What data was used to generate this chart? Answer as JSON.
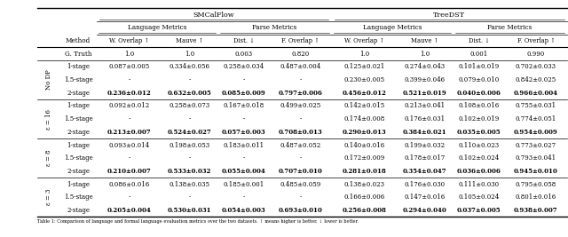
{
  "title_smcalflow": "SMCalFlow",
  "title_treedst": "TreeDST",
  "sub_lang": "Language Metrics",
  "sub_parse": "Parse Metrics",
  "col_headers": [
    "W. Overlap ↑",
    "Mauve ↑",
    "Dist. ↓",
    "F. Overlap ↑",
    "W. Overlap ↑",
    "Mauve ↑",
    "Dist. ↓",
    "F. Overlap ↑"
  ],
  "row_groups": [
    {
      "label": "No DP",
      "rows": [
        {
          "method": "1-stage",
          "bold": false,
          "vals": [
            "0.087±0.005",
            "0.334±0.056",
            "0.258±0.034",
            "0.487±0.004",
            "0.125±0.021",
            "0.274±0.043",
            "0.101±0.019",
            "0.702±0.033"
          ]
        },
        {
          "method": "1.5-stage",
          "bold": false,
          "vals": [
            "-",
            "-",
            "-",
            "-",
            "0.230±0.005",
            "0.399±0.046",
            "0.079±0.010",
            "0.842±0.025"
          ]
        },
        {
          "method": "2-stage",
          "bold": true,
          "vals": [
            "0.236±0.012",
            "0.632±0.005",
            "0.085±0.009",
            "0.797±0.006",
            "0.456±0.012",
            "0.521±0.019",
            "0.040±0.006",
            "0.966±0.004"
          ]
        }
      ]
    },
    {
      "label": "ε = 16",
      "rows": [
        {
          "method": "1-stage",
          "bold": false,
          "vals": [
            "0.092±0.012",
            "0.258±0.073",
            "0.167±0.018",
            "0.499±0.025",
            "0.142±0.015",
            "0.213±0.041",
            "0.108±0.016",
            "0.755±0.031"
          ]
        },
        {
          "method": "1.5-stage",
          "bold": false,
          "vals": [
            "-",
            "-",
            "-",
            "-",
            "0.174±0.008",
            "0.176±0.031",
            "0.102±0.019",
            "0.774±0.051"
          ]
        },
        {
          "method": "2-stage",
          "bold": true,
          "vals": [
            "0.213±0.007",
            "0.524±0.027",
            "0.057±0.003",
            "0.708±0.013",
            "0.290±0.013",
            "0.384±0.021",
            "0.035±0.005",
            "0.954±0.009"
          ]
        }
      ]
    },
    {
      "label": "ε = 8",
      "rows": [
        {
          "method": "1-stage",
          "bold": false,
          "vals": [
            "0.093±0.014",
            "0.198±0.053",
            "0.183±0.011",
            "0.487±0.052",
            "0.140±0.016",
            "0.199±0.032",
            "0.110±0.023",
            "0.773±0.027"
          ]
        },
        {
          "method": "1.5-stage",
          "bold": false,
          "vals": [
            "-",
            "-",
            "-",
            "-",
            "0.172±0.009",
            "0.178±0.017",
            "0.102±0.024",
            "0.793±0.041"
          ]
        },
        {
          "method": "2-stage",
          "bold": true,
          "vals": [
            "0.210±0.007",
            "0.533±0.032",
            "0.055±0.004",
            "0.707±0.010",
            "0.281±0.018",
            "0.354±0.047",
            "0.036±0.006",
            "0.945±0.010"
          ]
        }
      ]
    },
    {
      "label": "ε = 3",
      "rows": [
        {
          "method": "1-stage",
          "bold": false,
          "vals": [
            "0.086±0.016",
            "0.138±0.035",
            "0.185±0.001",
            "0.485±0.059",
            "0.138±0.023",
            "0.176±0.030",
            "0.111±0.030",
            "0.795±0.058"
          ]
        },
        {
          "method": "1.5-stage",
          "bold": false,
          "vals": [
            "-",
            "-",
            "-",
            "-",
            "0.166±0.006",
            "0.147±0.016",
            "0.105±0.024",
            "0.801±0.016"
          ]
        },
        {
          "method": "2-stage",
          "bold": true,
          "vals": [
            "0.205±0.004",
            "0.530±0.031",
            "0.054±0.003",
            "0.693±0.010",
            "0.256±0.008",
            "0.294±0.040",
            "0.037±0.005",
            "0.938±0.007"
          ]
        }
      ]
    }
  ],
  "ground_truth": [
    "1.0",
    "1.0",
    "0.003",
    "0.820",
    "1.0",
    "1.0",
    "0.001",
    "0.990"
  ],
  "caption": "Table 1: Comparison of language and formal language evaluation metrics over the two datasets. ↑ means higher is better, ↓ lower is better.",
  "figsize": [
    6.4,
    2.67
  ],
  "dpi": 100
}
